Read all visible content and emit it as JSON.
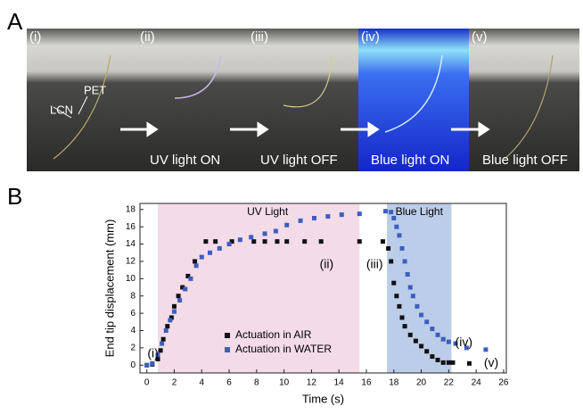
{
  "figure_labels": [
    "A",
    "B"
  ],
  "panel_a": {
    "frames": [
      {
        "label": "(i)"
      },
      {
        "label": "(ii)",
        "caption": "UV light ON"
      },
      {
        "label": "(iii)",
        "caption": "UV light OFF"
      },
      {
        "label": "(iv)",
        "caption": "Blue light ON"
      },
      {
        "label": "(v)",
        "caption": "Blue light OFF"
      }
    ],
    "annotations": [
      "LCN",
      "PET"
    ]
  },
  "chart_data": {
    "type": "scatter",
    "x_label": "Time (s)",
    "y_label": "End tip displacement (mm)",
    "xlim": [
      -0.5,
      26.2
    ],
    "ylim": [
      -0.9,
      18.7
    ],
    "xticks": [
      0,
      2,
      4,
      6,
      8,
      10,
      12,
      14,
      16,
      18,
      20,
      22,
      24,
      26
    ],
    "yticks": [
      0,
      2,
      4,
      6,
      8,
      10,
      12,
      14,
      16,
      18
    ],
    "regions": [
      {
        "label": "UV Light",
        "start": 0.8,
        "end": 15.5,
        "color": "#f3dbe8"
      },
      {
        "label": "Blue Light",
        "start": 17.5,
        "end": 22.2,
        "color": "#bccde9"
      }
    ],
    "series": [
      {
        "name": "Actuation in AIR",
        "color": "#111111",
        "x": [
          0,
          0.4,
          0.8,
          1.0,
          1.2,
          1.5,
          1.8,
          2.0,
          2.3,
          2.6,
          3.0,
          3.5,
          4.3,
          5.0,
          6.2,
          7.8,
          8.6,
          9.5,
          10.2,
          11.5,
          12.7,
          15.5,
          17.2,
          17.6,
          17.8,
          18.0,
          18.2,
          18.4,
          18.6,
          18.8,
          19.2,
          19.6,
          20.0,
          20.4,
          20.8,
          21.2,
          21.6,
          22.0,
          22.3,
          23.5
        ],
        "values": [
          0,
          0.1,
          0.7,
          1.7,
          3.0,
          4.5,
          5.5,
          6.8,
          8.0,
          9.0,
          10.3,
          12.0,
          14.3,
          14.3,
          14.3,
          14.3,
          14.3,
          14.3,
          14.3,
          14.3,
          14.3,
          14.3,
          14.3,
          13.5,
          12.0,
          9.5,
          8.0,
          6.8,
          5.5,
          4.5,
          3.5,
          2.8,
          2.2,
          1.6,
          1.0,
          0.6,
          0.3,
          0.3,
          0.3,
          0.2
        ]
      },
      {
        "name": "Actuation in WATER",
        "color": "#3b5fc0",
        "x": [
          0,
          0.4,
          0.8,
          1.1,
          1.4,
          1.7,
          2.0,
          2.4,
          2.8,
          3.2,
          3.6,
          4.0,
          4.6,
          5.3,
          6.0,
          6.8,
          7.6,
          8.6,
          9.4,
          10.2,
          11.2,
          12.2,
          13.2,
          14.2,
          15.5,
          17.4,
          17.8,
          18.0,
          18.2,
          18.4,
          18.6,
          18.8,
          19.0,
          19.2,
          19.4,
          19.7,
          20.0,
          20.4,
          20.8,
          21.2,
          21.6,
          22.0,
          22.5,
          23.3,
          24.7
        ],
        "values": [
          0,
          0.2,
          1.2,
          2.5,
          4.0,
          5.2,
          6.2,
          7.5,
          8.8,
          10.0,
          11.5,
          12.5,
          13.0,
          13.5,
          14.0,
          14.5,
          14.8,
          15.2,
          15.5,
          16.2,
          16.7,
          17.0,
          17.2,
          17.4,
          17.5,
          17.8,
          17.7,
          17.0,
          16.0,
          15.0,
          13.5,
          12.0,
          10.5,
          9.0,
          8.0,
          6.8,
          5.8,
          5.0,
          4.2,
          3.5,
          3.0,
          2.7,
          2.5,
          2.0,
          1.8
        ]
      }
    ],
    "annotations": [
      {
        "text": "(i)",
        "x": 0.45,
        "y": 1.3
      },
      {
        "text": "(ii)",
        "x": 13.1,
        "y": 11.6
      },
      {
        "text": "(iii)",
        "x": 16.6,
        "y": 11.6
      },
      {
        "text": "(iv)",
        "x": 23.1,
        "y": 2.6
      },
      {
        "text": "(v)",
        "x": 25.1,
        "y": 0.2
      }
    ],
    "legend": "lower center"
  }
}
